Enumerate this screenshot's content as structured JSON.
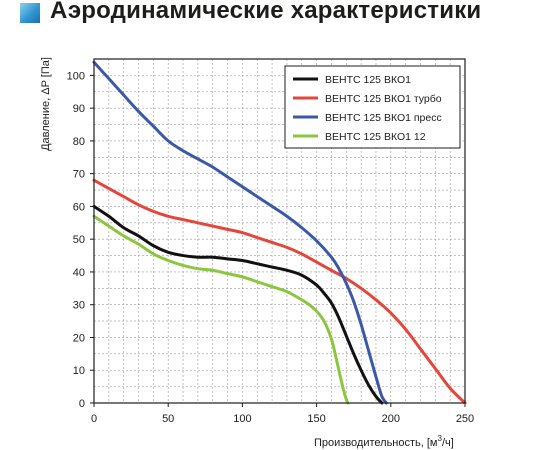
{
  "header": {
    "title": "Аэродинамические характеристики"
  },
  "chart_data": {
    "type": "line",
    "title": "Аэродинамические характеристики",
    "xlabel": "Производительность, [м³/ч]",
    "xlabel_main": "Производительность, [м",
    "xlabel_sup": "3",
    "xlabel_tail": "/ч]",
    "ylabel": "Давление, ΔP [Па]",
    "xlim": [
      0,
      250
    ],
    "ylim": [
      0,
      105
    ],
    "x_ticks": [
      0,
      50,
      100,
      150,
      200,
      250
    ],
    "y_ticks": [
      0,
      10,
      20,
      30,
      40,
      50,
      60,
      70,
      80,
      90,
      100
    ],
    "grid": true,
    "legend_position": "top-right",
    "series": [
      {
        "name": "ВЕНТС 125 ВКО1",
        "color": "#111111",
        "x": [
          0,
          10,
          20,
          30,
          40,
          50,
          60,
          70,
          80,
          90,
          100,
          110,
          120,
          130,
          140,
          150,
          155,
          160,
          165,
          170,
          175,
          180,
          185,
          190,
          194
        ],
        "y": [
          60,
          57,
          53.5,
          51,
          48,
          46,
          45,
          44.5,
          44.5,
          44,
          43.5,
          42.5,
          41.5,
          40.5,
          39,
          36,
          33.5,
          30.5,
          26,
          20.5,
          15,
          10,
          5.5,
          2,
          0
        ]
      },
      {
        "name": "ВЕНТС 125 ВКО1 турбо",
        "color": "#e6463a",
        "x": [
          0,
          10,
          20,
          30,
          40,
          50,
          60,
          70,
          80,
          90,
          100,
          110,
          120,
          130,
          140,
          150,
          160,
          170,
          180,
          190,
          200,
          210,
          220,
          230,
          240,
          250
        ],
        "y": [
          68,
          65.5,
          63,
          60.5,
          58.5,
          57,
          56,
          55,
          54,
          53,
          52,
          50.5,
          49,
          47.5,
          45.5,
          43,
          40.5,
          38,
          35,
          31.5,
          27.5,
          22.5,
          16.5,
          10.5,
          4.5,
          0
        ]
      },
      {
        "name": "ВЕНТС 125 ВКО1 пресс",
        "color": "#3b59a8",
        "x": [
          0,
          10,
          20,
          30,
          40,
          50,
          60,
          70,
          80,
          90,
          100,
          110,
          120,
          130,
          140,
          150,
          160,
          165,
          170,
          175,
          180,
          185,
          190,
          194,
          197
        ],
        "y": [
          104,
          99,
          94,
          89,
          84.5,
          80,
          77,
          74.5,
          72,
          69,
          66,
          63,
          60,
          57,
          53.5,
          49.5,
          44.5,
          41,
          36.5,
          31,
          24,
          16,
          8,
          2,
          0
        ]
      },
      {
        "name": "ВЕНТС 125 ВКО1 12",
        "color": "#8cc63f",
        "x": [
          0,
          10,
          20,
          30,
          40,
          50,
          60,
          70,
          80,
          90,
          100,
          110,
          120,
          130,
          140,
          145,
          150,
          155,
          160,
          163,
          166,
          169,
          171
        ],
        "y": [
          57,
          54,
          51,
          48.5,
          45.5,
          43.5,
          42,
          41,
          40.5,
          39.5,
          38.5,
          37,
          35.5,
          34,
          31.5,
          30,
          28,
          25,
          19.5,
          14,
          8,
          2.5,
          0
        ]
      }
    ]
  }
}
